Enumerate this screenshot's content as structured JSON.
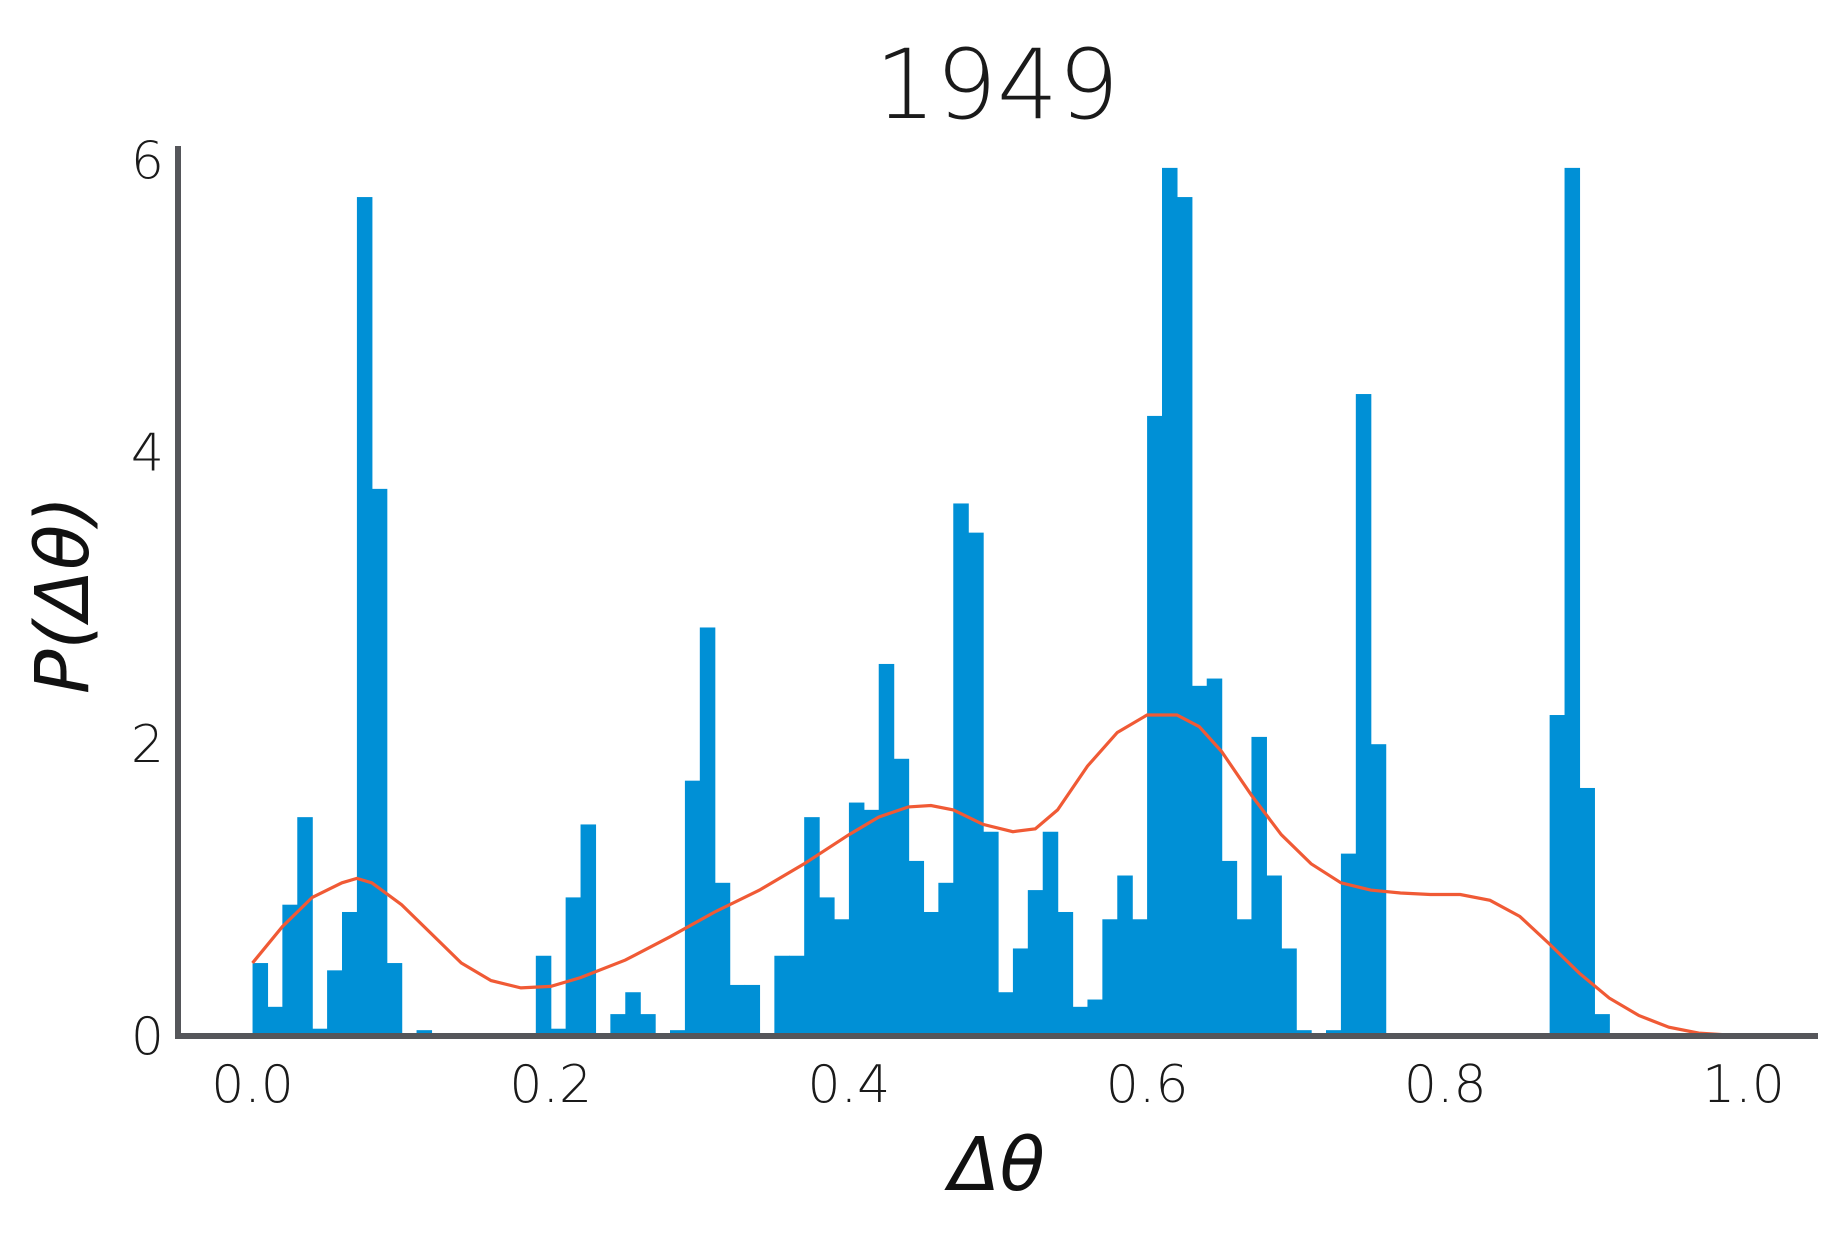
{
  "chart_data": {
    "type": "bar",
    "title": "1949",
    "xlabel": "Δθ",
    "ylabel": "P(Δθ)",
    "xlim": [
      -0.05,
      1.05
    ],
    "ylim": [
      0,
      6.1
    ],
    "xticks": [
      0.0,
      0.2,
      0.4,
      0.6,
      0.8,
      1.0
    ],
    "xtick_labels": [
      "0.0",
      "0.2",
      "0.4",
      "0.6",
      "0.8",
      "1.0"
    ],
    "yticks": [
      0,
      2,
      4,
      6
    ],
    "ytick_labels": [
      "0",
      "2",
      "4",
      "6"
    ],
    "grid": false,
    "bar_color": "#0090d6",
    "curve_color": "#f05a35",
    "axis_color": "#55565a",
    "bin_start": 0.0,
    "bin_width": 0.01,
    "histogram_values": [
      0.5,
      0.2,
      0.9,
      1.5,
      0.05,
      0.45,
      0.85,
      5.75,
      3.75,
      0.5,
      0.0,
      0.04,
      0.0,
      0.0,
      0.0,
      0.0,
      0.0,
      0.0,
      0.0,
      0.55,
      0.05,
      0.95,
      1.45,
      0.0,
      0.15,
      0.3,
      0.15,
      0.0,
      0.04,
      1.75,
      2.8,
      1.05,
      0.35,
      0.35,
      0.0,
      0.55,
      0.55,
      1.5,
      0.95,
      0.8,
      1.6,
      1.55,
      2.55,
      1.9,
      1.2,
      0.85,
      1.05,
      3.65,
      3.45,
      1.4,
      0.3,
      0.6,
      1.0,
      1.4,
      0.85,
      0.2,
      0.25,
      0.8,
      1.1,
      0.8,
      4.25,
      5.95,
      5.75,
      2.4,
      2.45,
      1.2,
      0.8,
      2.05,
      1.1,
      0.6,
      0.04,
      0.0,
      0.04,
      1.25,
      4.4,
      2.0,
      0.0,
      0.0,
      0.0,
      0.0,
      0.0,
      0.0,
      0.0,
      0.0,
      0.0,
      0.0,
      0.0,
      2.2,
      5.95,
      1.7,
      0.15
    ],
    "kde_curve": {
      "x": [
        0.0,
        0.02,
        0.04,
        0.06,
        0.07,
        0.08,
        0.1,
        0.12,
        0.14,
        0.16,
        0.18,
        0.2,
        0.22,
        0.25,
        0.28,
        0.31,
        0.34,
        0.37,
        0.4,
        0.42,
        0.44,
        0.455,
        0.47,
        0.49,
        0.51,
        0.525,
        0.54,
        0.56,
        0.58,
        0.6,
        0.62,
        0.635,
        0.65,
        0.67,
        0.69,
        0.71,
        0.73,
        0.75,
        0.77,
        0.79,
        0.81,
        0.83,
        0.85,
        0.87,
        0.89,
        0.91,
        0.93,
        0.95,
        0.97,
        1.0
      ],
      "y": [
        0.5,
        0.75,
        0.95,
        1.05,
        1.08,
        1.05,
        0.9,
        0.7,
        0.5,
        0.38,
        0.33,
        0.34,
        0.4,
        0.52,
        0.68,
        0.85,
        1.0,
        1.18,
        1.38,
        1.5,
        1.57,
        1.58,
        1.55,
        1.45,
        1.4,
        1.42,
        1.55,
        1.85,
        2.08,
        2.2,
        2.2,
        2.12,
        1.95,
        1.65,
        1.38,
        1.18,
        1.05,
        1.0,
        0.98,
        0.97,
        0.97,
        0.93,
        0.82,
        0.63,
        0.43,
        0.26,
        0.14,
        0.06,
        0.02,
        0.0
      ]
    }
  }
}
